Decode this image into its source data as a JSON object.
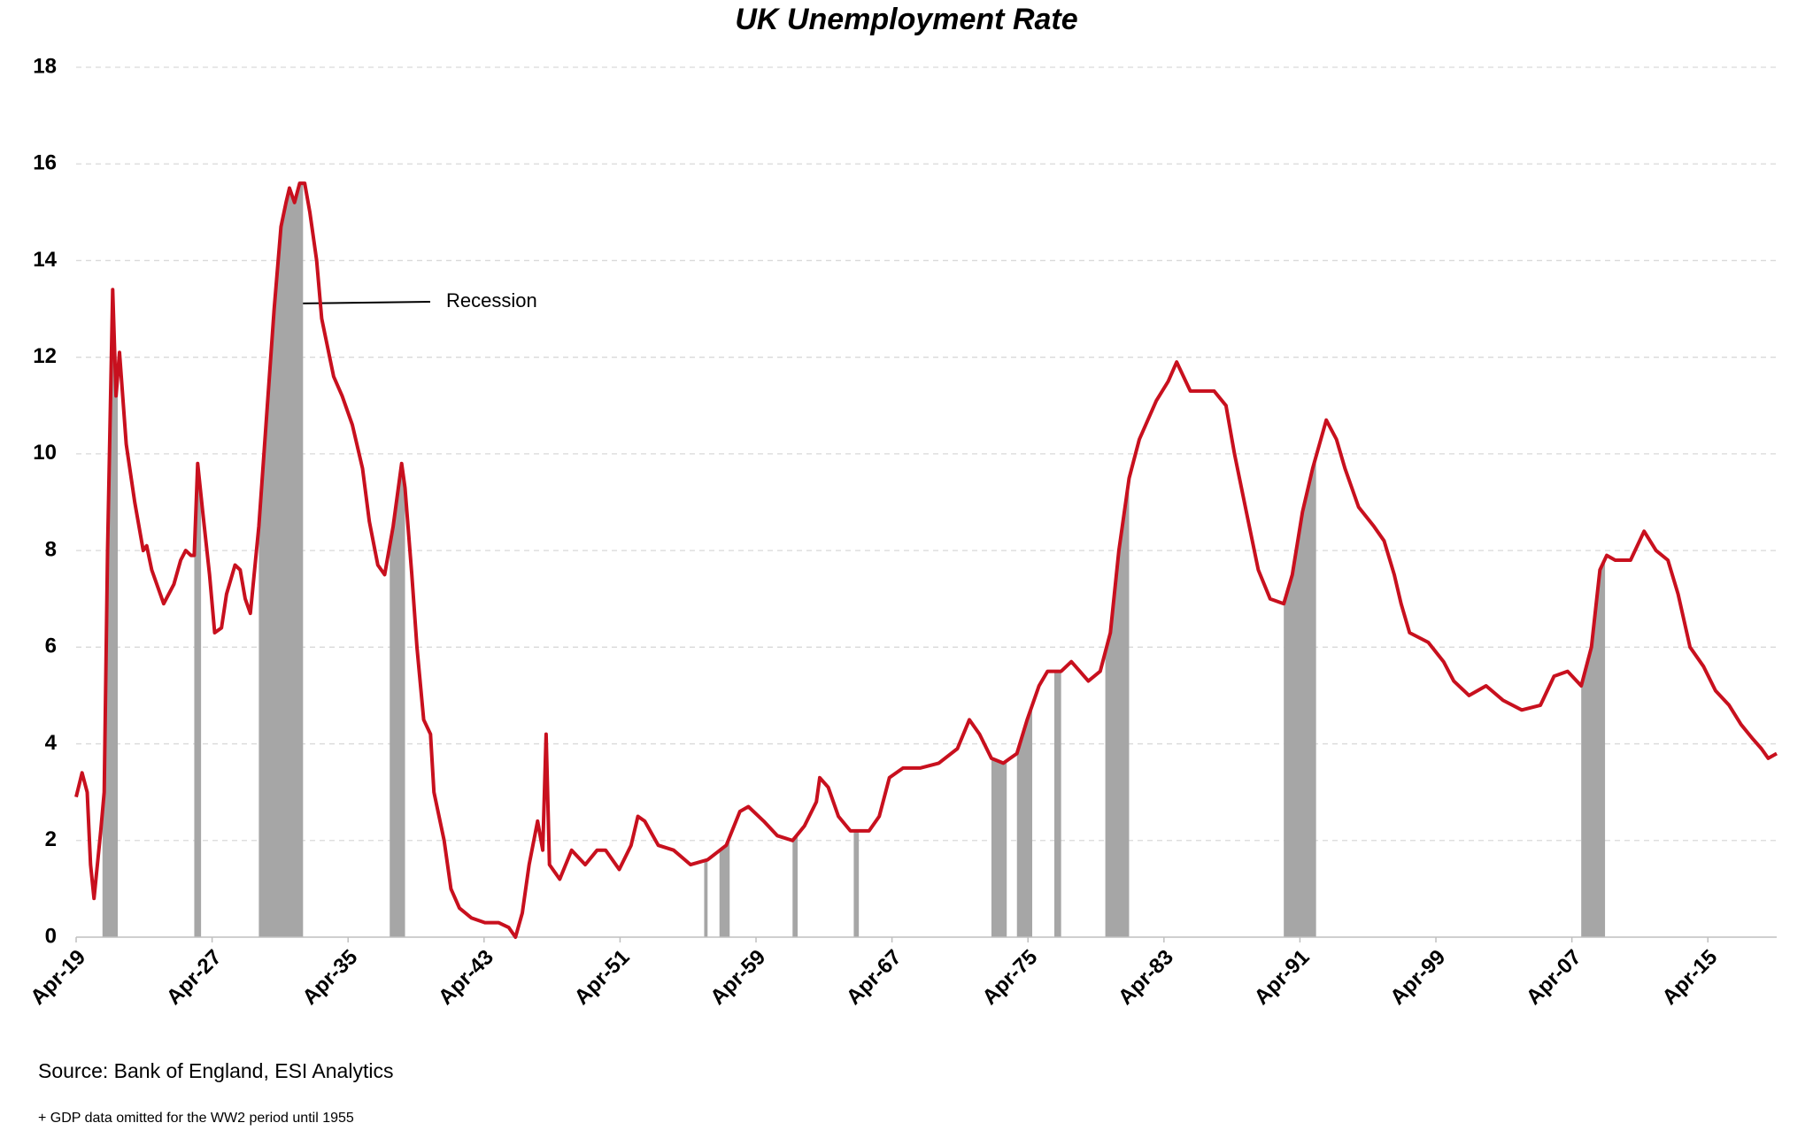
{
  "chart_data": {
    "type": "line",
    "title": "UK Unemployment Rate",
    "x": [
      1919.25,
      1919.6,
      1919.9,
      1920.1,
      1920.3,
      1920.7,
      1920.9,
      1921.1,
      1921.4,
      1921.6,
      1921.8,
      1922.2,
      1922.7,
      1923.2,
      1923.4,
      1923.7,
      1924.4,
      1925.0,
      1925.4,
      1925.7,
      1926.0,
      1926.2,
      1926.4,
      1926.7,
      1927.1,
      1927.4,
      1927.8,
      1928.1,
      1928.6,
      1928.9,
      1929.2,
      1929.5,
      1930.0,
      1930.5,
      1930.9,
      1931.3,
      1931.6,
      1931.8,
      1932.1,
      1932.4,
      1932.7,
      1933.0,
      1933.4,
      1933.7,
      1934.4,
      1934.9,
      1935.5,
      1936.1,
      1936.5,
      1937.0,
      1937.4,
      1937.9,
      1938.4,
      1938.6,
      1939.0,
      1939.3,
      1939.7,
      1940.1,
      1940.3,
      1940.9,
      1941.3,
      1941.8,
      1942.5,
      1943.3,
      1944.1,
      1944.7,
      1945.1,
      1945.5,
      1945.9,
      1946.4,
      1946.7,
      1946.9,
      1947.1,
      1947.7,
      1948.4,
      1949.2,
      1949.9,
      1950.4,
      1951.2,
      1951.9,
      1952.3,
      1952.7,
      1953.5,
      1954.4,
      1955.4,
      1956.4,
      1957.5,
      1958.3,
      1958.8,
      1959.7,
      1960.5,
      1961.4,
      1962.1,
      1962.8,
      1963.0,
      1963.5,
      1964.1,
      1964.8,
      1965.9,
      1966.5,
      1967.1,
      1967.9,
      1968.9,
      1970.0,
      1971.1,
      1971.8,
      1972.4,
      1973.1,
      1973.8,
      1974.6,
      1975.2,
      1975.9,
      1976.4,
      1977.2,
      1977.8,
      1978.3,
      1978.8,
      1979.5,
      1980.1,
      1980.6,
      1981.2,
      1981.8,
      1982.8,
      1983.5,
      1984.0,
      1984.8,
      1986.2,
      1986.9,
      1987.4,
      1988.1,
      1988.8,
      1989.5,
      1990.3,
      1990.8,
      1991.4,
      1992.0,
      1992.4,
      1992.8,
      1993.4,
      1993.9,
      1994.7,
      1995.6,
      1996.2,
      1996.8,
      1997.2,
      1997.7,
      1998.8,
      1999.7,
      2000.3,
      2001.2,
      2002.2,
      2003.2,
      2004.3,
      2005.4,
      2006.2,
      2007.0,
      2007.8,
      2008.4,
      2008.9,
      2009.3,
      2009.8,
      2010.7,
      2011.5,
      2012.2,
      2012.9,
      2013.5,
      2014.2,
      2015.0,
      2015.7,
      2016.5,
      2017.2,
      2017.9,
      2018.4,
      2018.8,
      2019.3
    ],
    "values": [
      2.9,
      3.4,
      3.0,
      1.5,
      0.8,
      2.2,
      3.0,
      8.0,
      13.4,
      11.2,
      12.1,
      10.2,
      9.0,
      8.0,
      8.1,
      7.6,
      6.9,
      7.3,
      7.8,
      8.0,
      7.9,
      7.9,
      9.8,
      8.8,
      7.5,
      6.3,
      6.4,
      7.1,
      7.7,
      7.6,
      7.0,
      6.7,
      8.5,
      11.0,
      13.0,
      14.7,
      15.2,
      15.5,
      15.2,
      15.6,
      15.6,
      15.0,
      14.0,
      12.8,
      11.6,
      11.2,
      10.6,
      9.7,
      8.6,
      7.7,
      7.5,
      8.5,
      9.8,
      9.3,
      7.5,
      6.0,
      4.5,
      4.2,
      3.0,
      2.0,
      1.0,
      0.6,
      0.4,
      0.3,
      0.3,
      0.2,
      0.0,
      0.5,
      1.5,
      2.4,
      1.8,
      4.2,
      1.5,
      1.2,
      1.8,
      1.5,
      1.8,
      1.8,
      1.4,
      1.9,
      2.5,
      2.4,
      1.9,
      1.8,
      1.5,
      1.6,
      1.9,
      2.6,
      2.7,
      2.4,
      2.1,
      2.0,
      2.3,
      2.8,
      3.3,
      3.1,
      2.5,
      2.2,
      2.2,
      2.5,
      3.3,
      3.5,
      3.5,
      3.6,
      3.9,
      4.5,
      4.2,
      3.7,
      3.6,
      3.8,
      4.5,
      5.2,
      5.5,
      5.5,
      5.7,
      5.5,
      5.3,
      5.5,
      6.3,
      8.0,
      9.5,
      10.3,
      11.1,
      11.5,
      11.9,
      11.3,
      11.3,
      11.0,
      10.0,
      8.8,
      7.6,
      7.0,
      6.9,
      7.5,
      8.8,
      9.7,
      10.2,
      10.7,
      10.3,
      9.7,
      8.9,
      8.5,
      8.2,
      7.5,
      6.9,
      6.3,
      6.1,
      5.7,
      5.3,
      5.0,
      5.2,
      4.9,
      4.7,
      4.8,
      5.4,
      5.5,
      5.2,
      6.0,
      7.6,
      7.9,
      7.8,
      7.8,
      8.4,
      8.0,
      7.8,
      7.1,
      6.0,
      5.6,
      5.1,
      4.8,
      4.4,
      4.1,
      3.9,
      3.7,
      3.8
    ],
    "color": "#c8101e",
    "recessions": [
      [
        1920.8,
        1921.7
      ],
      [
        1926.2,
        1926.6
      ],
      [
        1930.0,
        1932.6
      ],
      [
        1937.7,
        1938.6
      ],
      [
        1956.2,
        1956.4
      ],
      [
        1957.1,
        1957.7
      ],
      [
        1961.4,
        1961.7
      ],
      [
        1965.0,
        1965.3
      ],
      [
        1973.1,
        1974.0
      ],
      [
        1974.6,
        1975.5
      ],
      [
        1976.8,
        1977.2
      ],
      [
        1979.8,
        1981.2
      ],
      [
        1990.3,
        1992.2
      ],
      [
        2007.8,
        2009.2
      ]
    ],
    "recession_color": "#a6a6a6",
    "annotation": "Recession",
    "xlim": [
      1919.25,
      2019.3
    ],
    "xticks": [
      {
        "value": 1919.25,
        "label": "Apr-19"
      },
      {
        "value": 1927.25,
        "label": "Apr-27"
      },
      {
        "value": 1935.25,
        "label": "Apr-35"
      },
      {
        "value": 1943.25,
        "label": "Apr-43"
      },
      {
        "value": 1951.25,
        "label": "Apr-51"
      },
      {
        "value": 1959.25,
        "label": "Apr-59"
      },
      {
        "value": 1967.25,
        "label": "Apr-67"
      },
      {
        "value": 1975.25,
        "label": "Apr-75"
      },
      {
        "value": 1983.25,
        "label": "Apr-83"
      },
      {
        "value": 1991.25,
        "label": "Apr-91"
      },
      {
        "value": 1999.25,
        "label": "Apr-99"
      },
      {
        "value": 2007.25,
        "label": "Apr-07"
      },
      {
        "value": 2015.25,
        "label": "Apr-15"
      }
    ],
    "ylim": [
      0,
      18
    ],
    "yticks": [
      0,
      2,
      4,
      6,
      8,
      10,
      12,
      14,
      16,
      18
    ],
    "grid": true,
    "source": "Source: Bank of England, ESI Analytics",
    "footnote": "+ GDP data omitted for the WW2 period until 1955"
  }
}
